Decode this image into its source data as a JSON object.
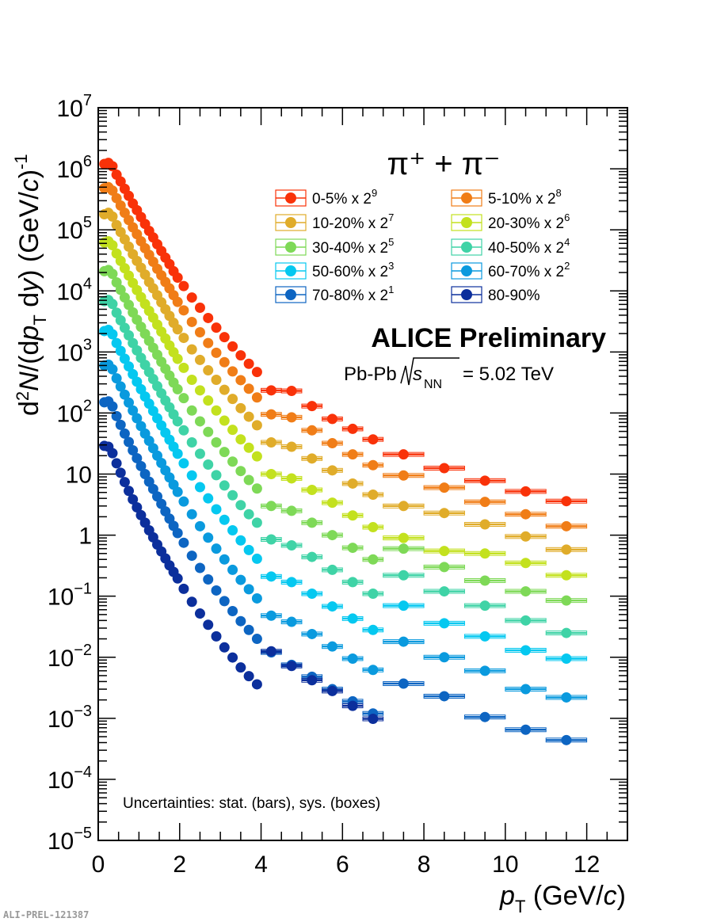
{
  "chart_data": {
    "type": "scatter",
    "particle_label": "π⁺ + π⁻",
    "experiment_label": "ALICE Preliminary",
    "system_label": "Pb-Pb",
    "energy_value": "= 5.02 TeV",
    "energy_symbol": "s",
    "energy_subscript": "NN",
    "uncertainty_note": "Uncertainties: stat. (bars), sys. (boxes)",
    "xlabel": "p_T (GeV/c)",
    "ylabel": "d²N/(dp_T dy) (GeV/c)⁻¹",
    "xlim": [
      0,
      13
    ],
    "ylim": [
      1e-05,
      10000000.0
    ],
    "yscale": "log",
    "x_ticks": [
      "0",
      "2",
      "4",
      "6",
      "8",
      "10",
      "12"
    ],
    "y_ticks": [
      "10^-5",
      "10^-4",
      "10^-3",
      "10^-2",
      "10^-1",
      "1",
      "10",
      "10^2",
      "10^3",
      "10^4",
      "10^5",
      "10^6",
      "10^7"
    ],
    "legend_position": "top-right",
    "grid": false,
    "series": [
      {
        "name": "0-5% x 2^9",
        "color": "#f93209",
        "x": [
          0.15,
          0.25,
          0.35,
          0.45,
          0.55,
          0.65,
          0.75,
          0.85,
          0.95,
          1.05,
          1.15,
          1.25,
          1.35,
          1.45,
          1.55,
          1.65,
          1.75,
          1.85,
          1.95,
          2.1,
          2.3,
          2.5,
          2.7,
          2.9,
          3.1,
          3.3,
          3.5,
          3.7,
          3.9,
          4.25,
          4.75,
          5.25,
          5.75,
          6.25,
          6.75,
          7.5,
          8.5,
          9.5,
          10.5,
          11.5
        ],
        "y": [
          1200000,
          1250000,
          1100000,
          800000,
          620000,
          470000,
          360000,
          270000,
          210000,
          162000,
          125000,
          96000,
          75000,
          58000,
          45000,
          35000,
          27500,
          21000,
          16500,
          12000,
          7800,
          5300,
          3600,
          2500,
          1750,
          1230,
          880,
          640,
          470,
          235,
          230,
          130,
          80,
          55,
          37,
          21,
          12.5,
          7.8,
          5.2,
          3.6
        ]
      },
      {
        "name": "5-10% x 2^8",
        "color": "#f07d17",
        "x": [
          0.15,
          0.25,
          0.35,
          0.45,
          0.55,
          0.65,
          0.75,
          0.85,
          0.95,
          1.05,
          1.15,
          1.25,
          1.35,
          1.45,
          1.55,
          1.65,
          1.75,
          1.85,
          1.95,
          2.1,
          2.3,
          2.5,
          2.7,
          2.9,
          3.1,
          3.3,
          3.5,
          3.7,
          3.9,
          4.25,
          4.75,
          5.25,
          5.75,
          6.25,
          6.75,
          7.5,
          8.5,
          9.5,
          10.5,
          11.5
        ],
        "y": [
          480000,
          500000,
          440000,
          330000,
          250000,
          190000,
          145000,
          110000,
          85000,
          65000,
          50000,
          39000,
          30000,
          23000,
          18000,
          14000,
          11000,
          8500,
          6600,
          4800,
          3100,
          2100,
          1400,
          970,
          680,
          480,
          345,
          250,
          180,
          95,
          85,
          52,
          32,
          21,
          14,
          9.5,
          6,
          3.5,
          2.2,
          1.4
        ]
      },
      {
        "name": "10-20% x 2^7",
        "color": "#e0ac2a",
        "x": [
          0.15,
          0.25,
          0.35,
          0.45,
          0.55,
          0.65,
          0.75,
          0.85,
          0.95,
          1.05,
          1.15,
          1.25,
          1.35,
          1.45,
          1.55,
          1.65,
          1.75,
          1.85,
          1.95,
          2.1,
          2.3,
          2.5,
          2.7,
          2.9,
          3.1,
          3.3,
          3.5,
          3.7,
          3.9,
          4.25,
          4.75,
          5.25,
          5.75,
          6.25,
          6.75,
          7.5,
          8.5,
          9.5,
          10.5,
          11.5
        ],
        "y": [
          180000,
          190000,
          165000,
          120000,
          92000,
          70000,
          53000,
          40000,
          31000,
          24000,
          18500,
          14000,
          11000,
          8500,
          6500,
          5000,
          3900,
          3000,
          2350,
          1700,
          1100,
          740,
          500,
          350,
          240,
          170,
          120,
          87,
          63,
          33,
          28,
          18,
          11.5,
          7,
          4.6,
          3,
          2.3,
          1.5,
          0.95,
          0.58
        ]
      },
      {
        "name": "20-30% x 2^6",
        "color": "#c3e11e",
        "x": [
          0.15,
          0.25,
          0.35,
          0.45,
          0.55,
          0.65,
          0.75,
          0.85,
          0.95,
          1.05,
          1.15,
          1.25,
          1.35,
          1.45,
          1.55,
          1.65,
          1.75,
          1.85,
          1.95,
          2.1,
          2.3,
          2.5,
          2.7,
          2.9,
          3.1,
          3.3,
          3.5,
          3.7,
          3.9,
          4.25,
          4.75,
          5.25,
          5.75,
          6.25,
          6.75,
          7.5,
          8.5,
          9.5,
          10.5,
          11.5
        ],
        "y": [
          62000,
          65000,
          56000,
          41000,
          31000,
          23500,
          17800,
          13500,
          10300,
          7900,
          6100,
          4700,
          3650,
          2800,
          2150,
          1660,
          1280,
          990,
          770,
          550,
          350,
          235,
          160,
          110,
          75,
          53,
          37,
          27,
          19.5,
          10,
          8.5,
          5.5,
          3.4,
          2.1,
          1.35,
          0.9,
          0.55,
          0.5,
          0.35,
          0.22
        ]
      },
      {
        "name": "30-40% x 2^5",
        "color": "#7ed957",
        "x": [
          0.15,
          0.25,
          0.35,
          0.45,
          0.55,
          0.65,
          0.75,
          0.85,
          0.95,
          1.05,
          1.15,
          1.25,
          1.35,
          1.45,
          1.55,
          1.65,
          1.75,
          1.85,
          1.95,
          2.1,
          2.3,
          2.5,
          2.7,
          2.9,
          3.1,
          3.3,
          3.5,
          3.7,
          3.9,
          4.25,
          4.75,
          5.25,
          5.75,
          6.25,
          6.75,
          7.5,
          8.5,
          9.5,
          10.5,
          11.5
        ],
        "y": [
          21000,
          22000,
          19000,
          13800,
          10400,
          7800,
          5900,
          4450,
          3380,
          2580,
          1980,
          1520,
          1170,
          900,
          690,
          530,
          410,
          315,
          245,
          175,
          110,
          73,
          49,
          33,
          23,
          16,
          11.2,
          8,
          5.8,
          3,
          2.5,
          1.6,
          1,
          0.62,
          0.4,
          0.6,
          0.3,
          0.18,
          0.12,
          0.085
        ]
      },
      {
        "name": "40-50% x 2^4",
        "color": "#3fd3a6",
        "x": [
          0.15,
          0.25,
          0.35,
          0.45,
          0.55,
          0.65,
          0.75,
          0.85,
          0.95,
          1.05,
          1.15,
          1.25,
          1.35,
          1.45,
          1.55,
          1.65,
          1.75,
          1.85,
          1.95,
          2.1,
          2.3,
          2.5,
          2.7,
          2.9,
          3.1,
          3.3,
          3.5,
          3.7,
          3.9,
          4.25,
          4.75,
          5.25,
          5.75,
          6.25,
          6.75,
          7.5,
          8.5,
          9.5,
          10.5,
          11.5
        ],
        "y": [
          6800,
          7100,
          6100,
          4400,
          3300,
          2480,
          1870,
          1400,
          1060,
          800,
          615,
          470,
          360,
          275,
          210,
          160,
          124,
          95,
          73,
          52,
          33,
          21.5,
          14.3,
          9.6,
          6.5,
          4.5,
          3.1,
          2.2,
          1.6,
          0.85,
          0.68,
          0.44,
          0.27,
          0.17,
          0.11,
          0.22,
          0.12,
          0.07,
          0.04,
          0.025
        ]
      },
      {
        "name": "50-60% x 2^3",
        "color": "#05c8f0",
        "x": [
          0.15,
          0.25,
          0.35,
          0.45,
          0.55,
          0.65,
          0.75,
          0.85,
          0.95,
          1.05,
          1.15,
          1.25,
          1.35,
          1.45,
          1.55,
          1.65,
          1.75,
          1.85,
          1.95,
          2.1,
          2.3,
          2.5,
          2.7,
          2.9,
          3.1,
          3.3,
          3.5,
          3.7,
          3.9,
          4.25,
          4.75,
          5.25,
          5.75,
          6.25,
          6.75,
          7.5,
          8.5,
          9.5,
          10.5,
          11.5
        ],
        "y": [
          2200,
          2300,
          1950,
          1400,
          1040,
          775,
          580,
          432,
          325,
          245,
          186,
          142,
          108,
          82,
          62.5,
          47.5,
          36.5,
          28,
          21.5,
          15,
          9.5,
          6.1,
          4,
          2.65,
          1.78,
          1.2,
          0.82,
          0.57,
          0.41,
          0.21,
          0.17,
          0.11,
          0.068,
          0.043,
          0.028,
          0.07,
          0.036,
          0.022,
          0.013,
          0.0095
        ]
      },
      {
        "name": "60-70% x 2^2",
        "color": "#0a9ade",
        "x": [
          0.15,
          0.25,
          0.35,
          0.45,
          0.55,
          0.65,
          0.75,
          0.85,
          0.95,
          1.05,
          1.15,
          1.25,
          1.35,
          1.45,
          1.55,
          1.65,
          1.75,
          1.85,
          1.95,
          2.1,
          2.3,
          2.5,
          2.7,
          2.9,
          3.1,
          3.3,
          3.5,
          3.7,
          3.9,
          4.25,
          4.75,
          5.25,
          5.75,
          6.25,
          6.75,
          7.5,
          8.5,
          9.5,
          10.5,
          11.5
        ],
        "y": [
          600,
          620,
          520,
          370,
          272,
          200,
          148,
          110,
          82,
          61,
          46,
          35,
          26.5,
          20,
          15.2,
          11.5,
          8.8,
          6.7,
          5.1,
          3.55,
          2.2,
          1.4,
          0.91,
          0.6,
          0.4,
          0.27,
          0.185,
          0.13,
          0.092,
          0.048,
          0.038,
          0.024,
          0.015,
          0.0095,
          0.0062,
          0.018,
          0.01,
          0.006,
          0.003,
          0.0022
        ]
      },
      {
        "name": "70-80% x 2^1",
        "color": "#0d65c2",
        "x": [
          0.15,
          0.25,
          0.35,
          0.45,
          0.55,
          0.65,
          0.75,
          0.85,
          0.95,
          1.05,
          1.15,
          1.25,
          1.35,
          1.45,
          1.55,
          1.65,
          1.75,
          1.85,
          1.95,
          2.1,
          2.3,
          2.5,
          2.7,
          2.9,
          3.1,
          3.3,
          3.5,
          3.7,
          3.9,
          4.25,
          4.75,
          5.25,
          5.75,
          6.25,
          6.75,
          7.5,
          8.5,
          9.5,
          10.5,
          11.5
        ],
        "y": [
          150,
          155,
          128,
          89,
          64,
          46,
          33.5,
          24.5,
          18.2,
          13.5,
          10,
          7.5,
          5.7,
          4.3,
          3.25,
          2.45,
          1.86,
          1.42,
          1.08,
          0.75,
          0.46,
          0.29,
          0.188,
          0.124,
          0.083,
          0.057,
          0.039,
          0.028,
          0.02,
          0.012,
          0.0075,
          0.0048,
          0.003,
          0.0019,
          0.0012,
          0.0037,
          0.0023,
          0.00105,
          0.00065,
          0.00044
        ]
      },
      {
        "name": "80-90%",
        "color": "#0c2f9c",
        "x": [
          0.15,
          0.25,
          0.35,
          0.45,
          0.55,
          0.65,
          0.75,
          0.85,
          0.95,
          1.05,
          1.15,
          1.25,
          1.35,
          1.45,
          1.55,
          1.65,
          1.75,
          1.85,
          1.95,
          2.1,
          2.3,
          2.5,
          2.7,
          2.9,
          3.1,
          3.3,
          3.5,
          3.7,
          3.9,
          4.25,
          4.75,
          5.25,
          5.75,
          6.25,
          6.75
        ],
        "y": [
          29,
          28,
          22,
          15,
          10.5,
          7.4,
          5.3,
          3.85,
          2.85,
          2.12,
          1.6,
          1.2,
          0.92,
          0.7,
          0.54,
          0.415,
          0.32,
          0.25,
          0.195,
          0.132,
          0.081,
          0.052,
          0.034,
          0.022,
          0.0145,
          0.0099,
          0.0068,
          0.0049,
          0.0036,
          0.0125,
          0.0072,
          0.0042,
          0.0028,
          0.0016,
          0.00098
        ]
      }
    ]
  },
  "footer_id": "ALI-PREL-121387"
}
